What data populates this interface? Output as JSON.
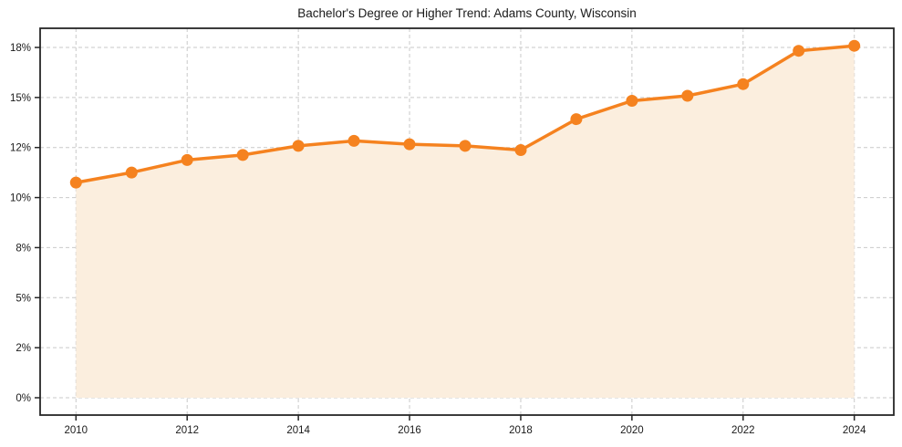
{
  "chart_data": {
    "type": "area",
    "title": "Bachelor's Degree or Higher Trend: Adams County, Wisconsin",
    "x": [
      2010,
      2011,
      2012,
      2013,
      2014,
      2015,
      2016,
      2017,
      2018,
      2019,
      2020,
      2021,
      2022,
      2023,
      2024
    ],
    "series": [
      {
        "name": "Bachelor's Degree or Higher (%)",
        "values": [
          10.6,
          11.0,
          11.5,
          11.7,
          12.1,
          12.4,
          12.2,
          12.1,
          11.9,
          13.7,
          14.8,
          15.1,
          15.8,
          17.8,
          18.1
        ]
      }
    ],
    "xlabel": "",
    "ylabel": "",
    "x_ticks": {
      "values": [
        2010,
        2012,
        2014,
        2016,
        2018,
        2020,
        2022,
        2024
      ],
      "labels": [
        "2010",
        "2012",
        "2014",
        "2016",
        "2018",
        "2020",
        "2022",
        "2024"
      ]
    },
    "y_ticks": {
      "values": [
        0,
        2,
        5,
        8,
        10,
        12,
        15,
        18
      ],
      "labels": [
        "0%",
        "2%",
        "5%",
        "8%",
        "10%",
        "12%",
        "15%",
        "18%"
      ],
      "spacing": "even-pixel-spacing-nonlinear-values"
    },
    "xlim": [
      2010,
      2024
    ],
    "grid": "dashed-both-axes",
    "legend_position": "none",
    "colors": {
      "line": "#f5821f",
      "marker": "#f5821f",
      "area_fill": "#fbeede",
      "grid": "#c9c9c9",
      "spine": "#262626",
      "text": "#1a1a1a"
    }
  }
}
